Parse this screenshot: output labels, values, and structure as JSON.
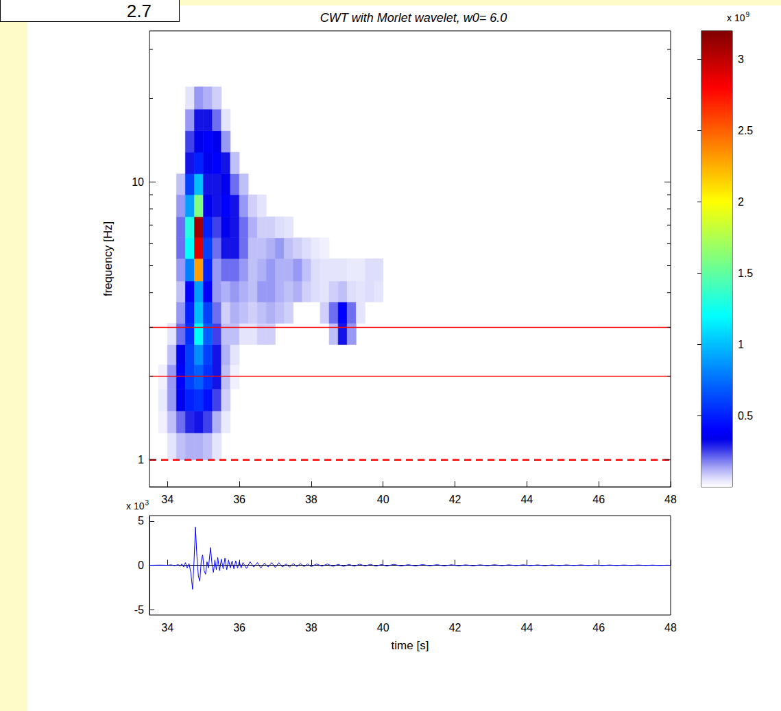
{
  "slide_number": "2.7",
  "chart_data": [
    {
      "type": "heatmap",
      "title": "CWT with Morlet wavelet, w0= 6.0",
      "y_label": "frequency [Hz]",
      "log": "y",
      "grid": false,
      "xlim": [
        33.5,
        48
      ],
      "xticks": [
        34,
        36,
        38,
        40,
        42,
        44,
        46,
        48
      ],
      "ylim": [
        0.8,
        35
      ],
      "yticks": [
        1,
        10
      ],
      "yminor": [
        2,
        3,
        4,
        5,
        6,
        7,
        8,
        9,
        20,
        30
      ],
      "time_edges": [
        33.75,
        34,
        34.25,
        34.5,
        34.75,
        35,
        35.25,
        35.5,
        35.75,
        36,
        36.25,
        36.5,
        36.75,
        37,
        37.25,
        37.5,
        37.75,
        38,
        38.25,
        38.5,
        38.75,
        39,
        39.25,
        39.5,
        39.75,
        40
      ],
      "freq_edges": [
        1,
        1.25,
        1.5,
        1.8,
        2.2,
        2.6,
        3.1,
        3.7,
        4.4,
        5.3,
        6.3,
        7.5,
        9,
        10.7,
        12.8,
        15.3,
        18.3,
        22
      ],
      "cells": [
        [
          0,
          0.05,
          0.1,
          0.12,
          0.12,
          0.1,
          0.05,
          0,
          0,
          0,
          0,
          0,
          0,
          0,
          0,
          0,
          0,
          0,
          0,
          0,
          0,
          0,
          0,
          0,
          0
        ],
        [
          0.03,
          0.1,
          0.2,
          0.28,
          0.3,
          0.25,
          0.12,
          0.04,
          0,
          0,
          0,
          0,
          0,
          0,
          0,
          0,
          0,
          0,
          0,
          0,
          0,
          0,
          0,
          0,
          0
        ],
        [
          0.04,
          0.15,
          0.35,
          0.5,
          0.55,
          0.45,
          0.25,
          0.08,
          0,
          0,
          0,
          0,
          0,
          0,
          0,
          0,
          0,
          0,
          0,
          0,
          0,
          0,
          0,
          0,
          0
        ],
        [
          0.03,
          0.15,
          0.4,
          0.6,
          0.7,
          0.55,
          0.3,
          0.1,
          0.03,
          0,
          0,
          0,
          0,
          0,
          0,
          0,
          0,
          0,
          0,
          0,
          0,
          0,
          0,
          0,
          0
        ],
        [
          0,
          0.1,
          0.35,
          0.6,
          0.85,
          0.6,
          0.3,
          0.12,
          0.05,
          0,
          0,
          0,
          0,
          0,
          0,
          0,
          0,
          0,
          0,
          0,
          0,
          0,
          0,
          0,
          0
        ],
        [
          0,
          0.05,
          0.2,
          0.55,
          1.2,
          0.7,
          0.25,
          0.1,
          0.1,
          0.05,
          0.05,
          0.08,
          0.08,
          0,
          0,
          0,
          0,
          0,
          0,
          0.1,
          0.3,
          0.15,
          0,
          0,
          0
        ],
        [
          0,
          0,
          0.15,
          0.5,
          1.0,
          0.6,
          0.2,
          0.08,
          0.12,
          0.1,
          0.08,
          0.1,
          0.12,
          0.1,
          0.08,
          0,
          0,
          0,
          0.08,
          0.2,
          0.4,
          0.2,
          0.05,
          0,
          0
        ],
        [
          0,
          0,
          0.1,
          0.4,
          0.9,
          0.4,
          0.15,
          0.12,
          0.15,
          0.12,
          0.1,
          0.15,
          0.15,
          0.12,
          0.1,
          0.12,
          0.08,
          0.06,
          0.05,
          0.08,
          0.1,
          0.06,
          0.05,
          0.06,
          0.05
        ],
        [
          0,
          0,
          0.15,
          0.8,
          2.3,
          0.5,
          0.15,
          0.2,
          0.2,
          0.15,
          0.1,
          0.12,
          0.15,
          0.12,
          0.12,
          0.15,
          0.1,
          0.06,
          0.05,
          0.05,
          0.05,
          0.04,
          0.04,
          0.06,
          0.06
        ],
        [
          0,
          0,
          0.2,
          1.2,
          2.9,
          0.6,
          0.2,
          0.3,
          0.3,
          0.2,
          0.1,
          0.1,
          0.12,
          0.15,
          0.1,
          0.08,
          0.06,
          0.04,
          0.03,
          0,
          0,
          0,
          0,
          0,
          0
        ],
        [
          0,
          0,
          0.2,
          1.3,
          3.1,
          0.5,
          0.25,
          0.35,
          0.3,
          0.2,
          0.12,
          0.08,
          0.08,
          0.06,
          0.05,
          0,
          0,
          0,
          0,
          0,
          0,
          0,
          0,
          0,
          0
        ],
        [
          0,
          0,
          0.15,
          0.9,
          1.6,
          0.35,
          0.3,
          0.4,
          0.3,
          0.15,
          0.08,
          0.05,
          0,
          0,
          0,
          0,
          0,
          0,
          0,
          0,
          0,
          0,
          0,
          0,
          0
        ],
        [
          0,
          0,
          0.1,
          0.6,
          1.0,
          0.3,
          0.3,
          0.35,
          0.2,
          0.1,
          0,
          0,
          0,
          0,
          0,
          0,
          0,
          0,
          0,
          0,
          0,
          0,
          0,
          0,
          0
        ],
        [
          0,
          0,
          0,
          0.3,
          0.5,
          0.35,
          0.4,
          0.3,
          0.1,
          0,
          0,
          0,
          0,
          0,
          0,
          0,
          0,
          0,
          0,
          0,
          0,
          0,
          0,
          0,
          0
        ],
        [
          0,
          0,
          0,
          0.25,
          0.35,
          0.4,
          0.35,
          0.15,
          0,
          0,
          0,
          0,
          0,
          0,
          0,
          0,
          0,
          0,
          0,
          0,
          0,
          0,
          0,
          0,
          0
        ],
        [
          0,
          0,
          0,
          0.15,
          0.3,
          0.3,
          0.2,
          0.05,
          0,
          0,
          0,
          0,
          0,
          0,
          0,
          0,
          0,
          0,
          0,
          0,
          0,
          0,
          0,
          0,
          0
        ],
        [
          0,
          0,
          0,
          0.05,
          0.15,
          0.12,
          0.08,
          0,
          0,
          0,
          0,
          0,
          0,
          0,
          0,
          0,
          0,
          0,
          0,
          0,
          0,
          0,
          0,
          0,
          0
        ]
      ],
      "color_range": [
        0,
        3.2
      ],
      "color_ticks": [
        0.5,
        1,
        1.5,
        2,
        2.5,
        3
      ],
      "color_multiplier": {
        "text": "x 10",
        "exponent": "9"
      },
      "lines": [
        {
          "value": 3,
          "color": "#ff0000",
          "line_style": "solid"
        },
        {
          "value": 2,
          "color": "#ff0000",
          "line_style": "solid"
        },
        {
          "value": 1,
          "color": "#ff0000",
          "line_style": "dashed"
        }
      ]
    },
    {
      "type": "line",
      "x_label": "time [s]",
      "color": "#0000ff",
      "grid": false,
      "xlim": [
        33.5,
        48
      ],
      "xticks": [
        34,
        36,
        38,
        40,
        42,
        44,
        46,
        48
      ],
      "ylim": [
        -5.6,
        5.6
      ],
      "yticks": [
        -5,
        0,
        5
      ],
      "multiplier": {
        "text": "x 10",
        "exponent": "3"
      },
      "x": [
        33.5,
        33.8,
        34.0,
        34.1,
        34.2,
        34.3,
        34.35,
        34.4,
        34.45,
        34.5,
        34.55,
        34.6,
        34.65,
        34.7,
        34.74,
        34.78,
        34.82,
        34.86,
        34.9,
        34.94,
        34.98,
        35.02,
        35.06,
        35.1,
        35.14,
        35.2,
        35.24,
        35.28,
        35.32,
        35.36,
        35.4,
        35.45,
        35.5,
        35.55,
        35.6,
        35.65,
        35.7,
        35.75,
        35.8,
        35.85,
        35.9,
        35.95,
        36.0,
        36.05,
        36.1,
        36.2,
        36.3,
        36.4,
        36.5,
        36.6,
        36.7,
        36.8,
        36.9,
        37.0,
        37.1,
        37.2,
        37.3,
        37.4,
        37.5,
        37.6,
        37.7,
        37.8,
        37.9,
        38.0,
        38.15,
        38.3,
        38.45,
        38.6,
        38.75,
        38.9,
        39.05,
        39.2,
        39.35,
        39.5,
        39.65,
        39.8,
        39.95,
        40.1,
        40.3,
        40.5,
        40.7,
        40.9,
        41.1,
        41.3,
        41.5,
        41.7,
        41.9,
        42.1,
        42.3,
        42.5,
        42.7,
        42.9,
        43.1,
        43.3,
        43.5,
        43.7,
        43.9,
        44.1,
        44.3,
        44.5,
        44.7,
        44.9,
        45.1,
        45.3,
        45.5,
        45.7,
        45.9,
        46.1,
        46.3,
        46.5,
        46.7,
        46.9,
        47.1,
        47.3,
        47.5,
        47.7,
        47.9,
        48.0
      ],
      "values": [
        0,
        0.02,
        0,
        0.05,
        -0.05,
        0.08,
        -0.1,
        0.15,
        -0.2,
        0.3,
        -0.3,
        0.2,
        -0.8,
        -2.7,
        0.5,
        4.3,
        1.0,
        -1.2,
        -1.8,
        0.5,
        1.2,
        -0.6,
        -1.0,
        0.4,
        -0.3,
        2.0,
        0.1,
        -0.8,
        0.6,
        -0.5,
        0.9,
        -0.6,
        0.7,
        -0.4,
        0.8,
        -0.5,
        0.6,
        -0.3,
        0.5,
        -0.4,
        0.5,
        -0.3,
        0.4,
        -0.3,
        0.3,
        -0.35,
        0.4,
        -0.2,
        0.3,
        -0.3,
        0.25,
        -0.2,
        0.3,
        -0.25,
        0.3,
        -0.2,
        0.15,
        -0.2,
        0.2,
        -0.15,
        0.2,
        -0.15,
        0.15,
        -0.15,
        0.15,
        -0.1,
        0.15,
        -0.12,
        0.1,
        -0.12,
        0.1,
        -0.1,
        0.12,
        -0.08,
        0.1,
        -0.1,
        0.08,
        -0.08,
        0.1,
        -0.08,
        0.07,
        -0.08,
        0.08,
        -0.06,
        0.07,
        -0.07,
        0.06,
        -0.06,
        0.05,
        -0.06,
        0.05,
        -0.05,
        0.06,
        -0.05,
        0.05,
        -0.04,
        0.05,
        -0.04,
        0.04,
        -0.05,
        0.04,
        -0.04,
        0.04,
        -0.03,
        0.04,
        -0.03,
        0.03,
        -0.03,
        0.03,
        -0.03,
        0.03,
        -0.02,
        0.03,
        -0.02,
        0.02,
        -0.02,
        0.01,
        0
      ]
    }
  ]
}
